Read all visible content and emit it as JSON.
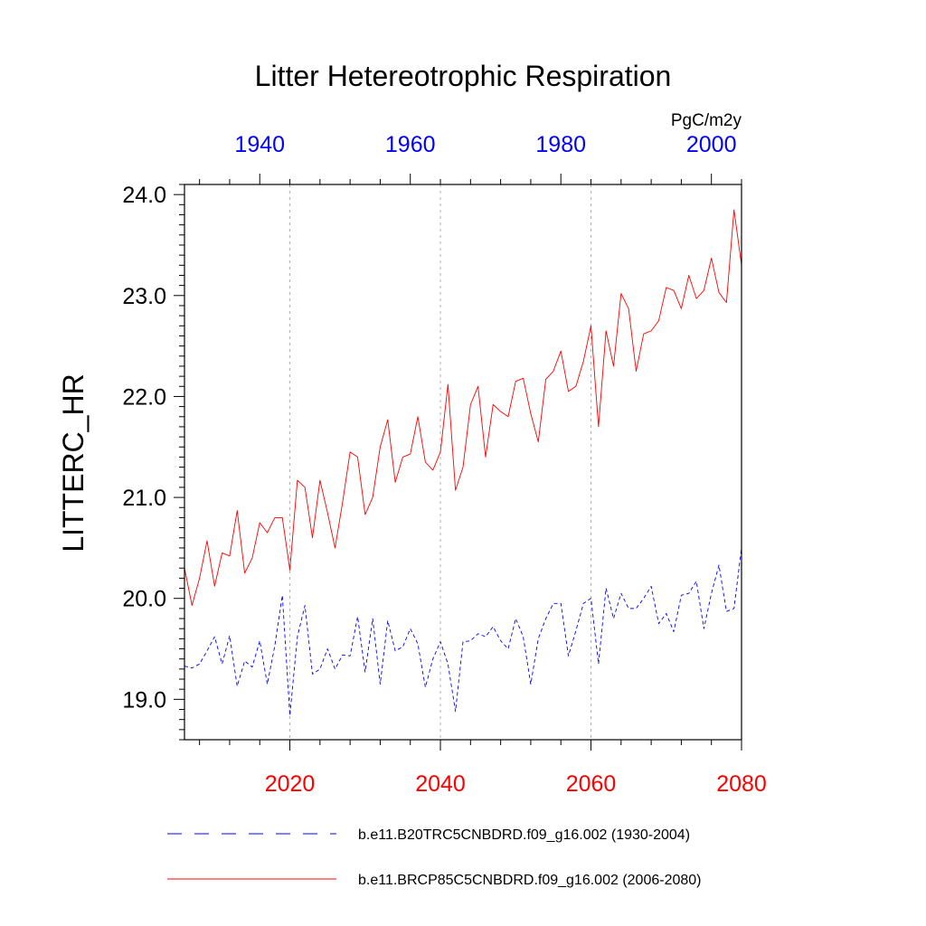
{
  "chart_data": {
    "type": "line",
    "title": "Litter Hetereotrophic Respiration",
    "ylabel": "LITTERC_HR",
    "units": "PgC/m2y",
    "ylim": [
      18.6,
      24.1
    ],
    "yticks": [
      19.0,
      20.0,
      21.0,
      22.0,
      23.0,
      24.0
    ],
    "ytick_labels": [
      "19.0",
      "20.0",
      "21.0",
      "22.0",
      "23.0",
      "24.0"
    ],
    "grid": "dashed vertical lines at bottom-axis major ticks",
    "bottom_axis": {
      "range": [
        2006,
        2080
      ],
      "ticks": [
        2020,
        2040,
        2060,
        2080
      ],
      "tick_labels": [
        "2020",
        "2040",
        "2060",
        "2080"
      ],
      "color": "#ff0000"
    },
    "top_axis": {
      "range": [
        1930,
        2004
      ],
      "ticks": [
        1940,
        1960,
        1980,
        2000
      ],
      "tick_labels": [
        "1940",
        "1960",
        "1980",
        "2000"
      ],
      "color": "#0000ff"
    },
    "series": [
      {
        "name": "b.e11.B20TRC5CNBDRD.f09_g16.002 (1930-2004)",
        "axis": "top",
        "color": "#0000ff",
        "dash": "dashed",
        "x_start": 1930,
        "values": [
          19.33,
          19.31,
          19.35,
          19.48,
          19.62,
          19.35,
          19.63,
          19.13,
          19.38,
          19.32,
          19.58,
          19.15,
          19.53,
          20.03,
          18.84,
          19.62,
          19.93,
          19.25,
          19.3,
          19.5,
          19.3,
          19.44,
          19.43,
          19.82,
          19.27,
          19.8,
          19.15,
          19.78,
          19.48,
          19.52,
          19.7,
          19.55,
          19.12,
          19.4,
          19.57,
          19.35,
          18.88,
          19.57,
          19.58,
          19.65,
          19.62,
          19.72,
          19.58,
          19.5,
          19.8,
          19.62,
          19.15,
          19.6,
          19.8,
          19.95,
          19.95,
          19.43,
          19.68,
          19.95,
          20.0,
          19.35,
          20.1,
          19.8,
          20.05,
          19.9,
          19.9,
          20.0,
          20.12,
          19.75,
          19.85,
          19.67,
          20.03,
          20.05,
          20.17,
          19.7,
          20.05,
          20.33,
          19.87,
          19.9,
          20.5
        ]
      },
      {
        "name": "b.e11.BRCP85C5CNBDRD.f09_g16.002 (2006-2080)",
        "axis": "bottom",
        "color": "#ff0000",
        "dash": "solid",
        "x_start": 2006,
        "values": [
          20.3,
          19.93,
          20.2,
          20.57,
          20.12,
          20.45,
          20.42,
          20.87,
          20.25,
          20.4,
          20.75,
          20.65,
          20.8,
          20.8,
          20.28,
          21.17,
          21.1,
          20.6,
          21.17,
          20.85,
          20.5,
          20.95,
          21.45,
          21.4,
          20.83,
          21.0,
          21.5,
          21.77,
          21.15,
          21.4,
          21.43,
          21.8,
          21.35,
          21.27,
          21.45,
          22.12,
          21.07,
          21.3,
          21.92,
          22.1,
          21.4,
          21.92,
          21.85,
          21.8,
          22.15,
          22.18,
          21.83,
          21.55,
          22.17,
          22.25,
          22.45,
          22.05,
          22.1,
          22.35,
          22.7,
          21.7,
          22.65,
          22.3,
          23.02,
          22.87,
          22.25,
          22.62,
          22.65,
          22.75,
          23.08,
          23.05,
          22.87,
          23.2,
          22.97,
          23.05,
          23.37,
          23.03,
          22.93,
          23.85,
          23.3
        ]
      }
    ],
    "legend": [
      {
        "label": "b.e11.B20TRC5CNBDRD.f09_g16.002 (1930-2004)",
        "color": "#0000ff",
        "dash": "dashed"
      },
      {
        "label": "b.e11.BRCP85C5CNBDRD.f09_g16.002 (2006-2080)",
        "color": "#ff0000",
        "dash": "solid"
      }
    ]
  }
}
